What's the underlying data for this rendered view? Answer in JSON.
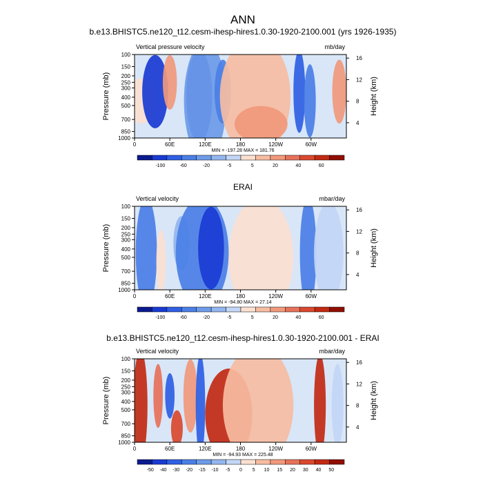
{
  "title": "ANN",
  "chart_data": [
    {
      "type": "heatmap",
      "title": "b.e13.BHISTC5.ne120_t12.cesm-ihesp-hires1.0.30-1920-2100.001 (yrs 1926-1935)",
      "left_label": "Vertical pressure velocity",
      "units": "mb/day",
      "ylabel": "Pressure (mb)",
      "ylabel_right": "Height (km)",
      "x_ticks": [
        "0",
        "60E",
        "120E",
        "180",
        "120W",
        "60W"
      ],
      "x_range": [
        0,
        360
      ],
      "y_ticks": [
        "100",
        "150",
        "200",
        "250",
        "300",
        "400",
        "500",
        "700",
        "850",
        "1000"
      ],
      "y_ticks_right": [
        "16",
        "12",
        "8",
        "4"
      ],
      "ylim": [
        1000,
        100
      ],
      "stats": "MIN = -197.28  MAX = 181.76",
      "colorbar_labels": [
        "-100",
        "-60",
        "-20",
        "-5",
        "5",
        "20",
        "40",
        "60"
      ],
      "regions": [
        {
          "lon": 12,
          "lev": 5,
          "w": 26,
          "h": 4,
          "v": 5
        },
        {
          "lon": 35,
          "lev": 4,
          "w": 22,
          "h": 7,
          "v": -40
        },
        {
          "lon": 60,
          "lev": 3,
          "w": 12,
          "h": 5,
          "v": 20
        },
        {
          "lon": 110,
          "lev": 4.5,
          "w": 22,
          "h": 9,
          "v": -45
        },
        {
          "lon": 120,
          "lev": 5,
          "w": 36,
          "h": 12,
          "v": -18
        },
        {
          "lon": 150,
          "lev": 4,
          "w": 14,
          "h": 6,
          "v": -30
        },
        {
          "lon": 205,
          "lev": 4.5,
          "w": 60,
          "h": 12,
          "v": 8
        },
        {
          "lon": 215,
          "lev": 7.5,
          "w": 45,
          "h": 3,
          "v": 22
        },
        {
          "lon": 280,
          "lev": 4,
          "w": 10,
          "h": 8,
          "v": -35
        },
        {
          "lon": 298,
          "lev": 5,
          "w": 10,
          "h": 7,
          "v": -25
        },
        {
          "lon": 348,
          "lev": 4,
          "w": 12,
          "h": 6,
          "v": 18
        }
      ]
    },
    {
      "type": "heatmap",
      "title": "ERAI",
      "left_label": "Vertical velocity",
      "units": "mbar/day",
      "ylabel": "Pressure (mb)",
      "ylabel_right": "Height (km)",
      "x_ticks": [
        "0",
        "60E",
        "120E",
        "180",
        "120W",
        "60W"
      ],
      "x_range": [
        0,
        360
      ],
      "y_ticks": [
        "100",
        "150",
        "200",
        "250",
        "300",
        "400",
        "500",
        "700",
        "850",
        "1000"
      ],
      "y_ticks_right": [
        "16",
        "12",
        "8",
        "4"
      ],
      "ylim": [
        1000,
        100
      ],
      "stats": "MIN = -94.80  MAX =  27.14",
      "colorbar_labels": [
        "-100",
        "-60",
        "-20",
        "-5",
        "5",
        "20",
        "40",
        "60"
      ],
      "regions": [
        {
          "lon": 20,
          "lev": 5,
          "w": 18,
          "h": 11,
          "v": -28
        },
        {
          "lon": 45,
          "lev": 6,
          "w": 8,
          "h": 6,
          "v": 6
        },
        {
          "lon": 80,
          "lev": 4,
          "w": 14,
          "h": 5,
          "v": -12
        },
        {
          "lon": 115,
          "lev": 5,
          "w": 45,
          "h": 11,
          "v": -28
        },
        {
          "lon": 130,
          "lev": 4.5,
          "w": 22,
          "h": 8,
          "v": -45
        },
        {
          "lon": 215,
          "lev": 5.5,
          "w": 55,
          "h": 12,
          "v": 6
        },
        {
          "lon": 295,
          "lev": 5,
          "w": 14,
          "h": 11,
          "v": -30
        },
        {
          "lon": 330,
          "lev": 5,
          "w": 25,
          "h": 10,
          "v": -3
        }
      ]
    },
    {
      "type": "heatmap",
      "title": "b.e13.BHISTC5.ne120_t12.cesm-ihesp-hires1.0.30-1920-2100.001 - ERAI",
      "left_label": "Vertical velocity",
      "units": "mbar/day",
      "ylabel": "Pressure (mb)",
      "ylabel_right": "Height (km)",
      "x_ticks": [
        "0",
        "60E",
        "120E",
        "180",
        "120W",
        "60W"
      ],
      "x_range": [
        0,
        360
      ],
      "y_ticks": [
        "100",
        "150",
        "200",
        "250",
        "300",
        "400",
        "500",
        "700",
        "850",
        "1000"
      ],
      "y_ticks_right": [
        "16",
        "12",
        "8",
        "4"
      ],
      "ylim": [
        1000,
        100
      ],
      "stats": "MIN = -94.93  MAX = 225.48",
      "colorbar_labels": [
        "-50",
        "-40",
        "-30",
        "-20",
        "-15",
        "-10",
        "-5",
        "0",
        "5",
        "10",
        "15",
        "20",
        "30",
        "40",
        "50"
      ],
      "regions": [
        {
          "lon": 10,
          "lev": 5,
          "w": 12,
          "h": 11,
          "v": 28
        },
        {
          "lon": 40,
          "lev": 4,
          "w": 8,
          "h": 6,
          "v": 18
        },
        {
          "lon": 72,
          "lev": 7.5,
          "w": 10,
          "h": 3,
          "v": 22
        },
        {
          "lon": 60,
          "lev": 4,
          "w": 8,
          "h": 4,
          "v": -22
        },
        {
          "lon": 95,
          "lev": 4,
          "w": 12,
          "h": 7,
          "v": 12
        },
        {
          "lon": 112,
          "lev": 5,
          "w": 8,
          "h": 10,
          "v": -25
        },
        {
          "lon": 160,
          "lev": 6,
          "w": 40,
          "h": 9,
          "v": 28
        },
        {
          "lon": 210,
          "lev": 5,
          "w": 60,
          "h": 12,
          "v": 6
        },
        {
          "lon": 315,
          "lev": 5,
          "w": 10,
          "h": 10,
          "v": 32
        },
        {
          "lon": 345,
          "lev": 5,
          "w": 10,
          "h": 8,
          "v": -5
        }
      ]
    }
  ]
}
